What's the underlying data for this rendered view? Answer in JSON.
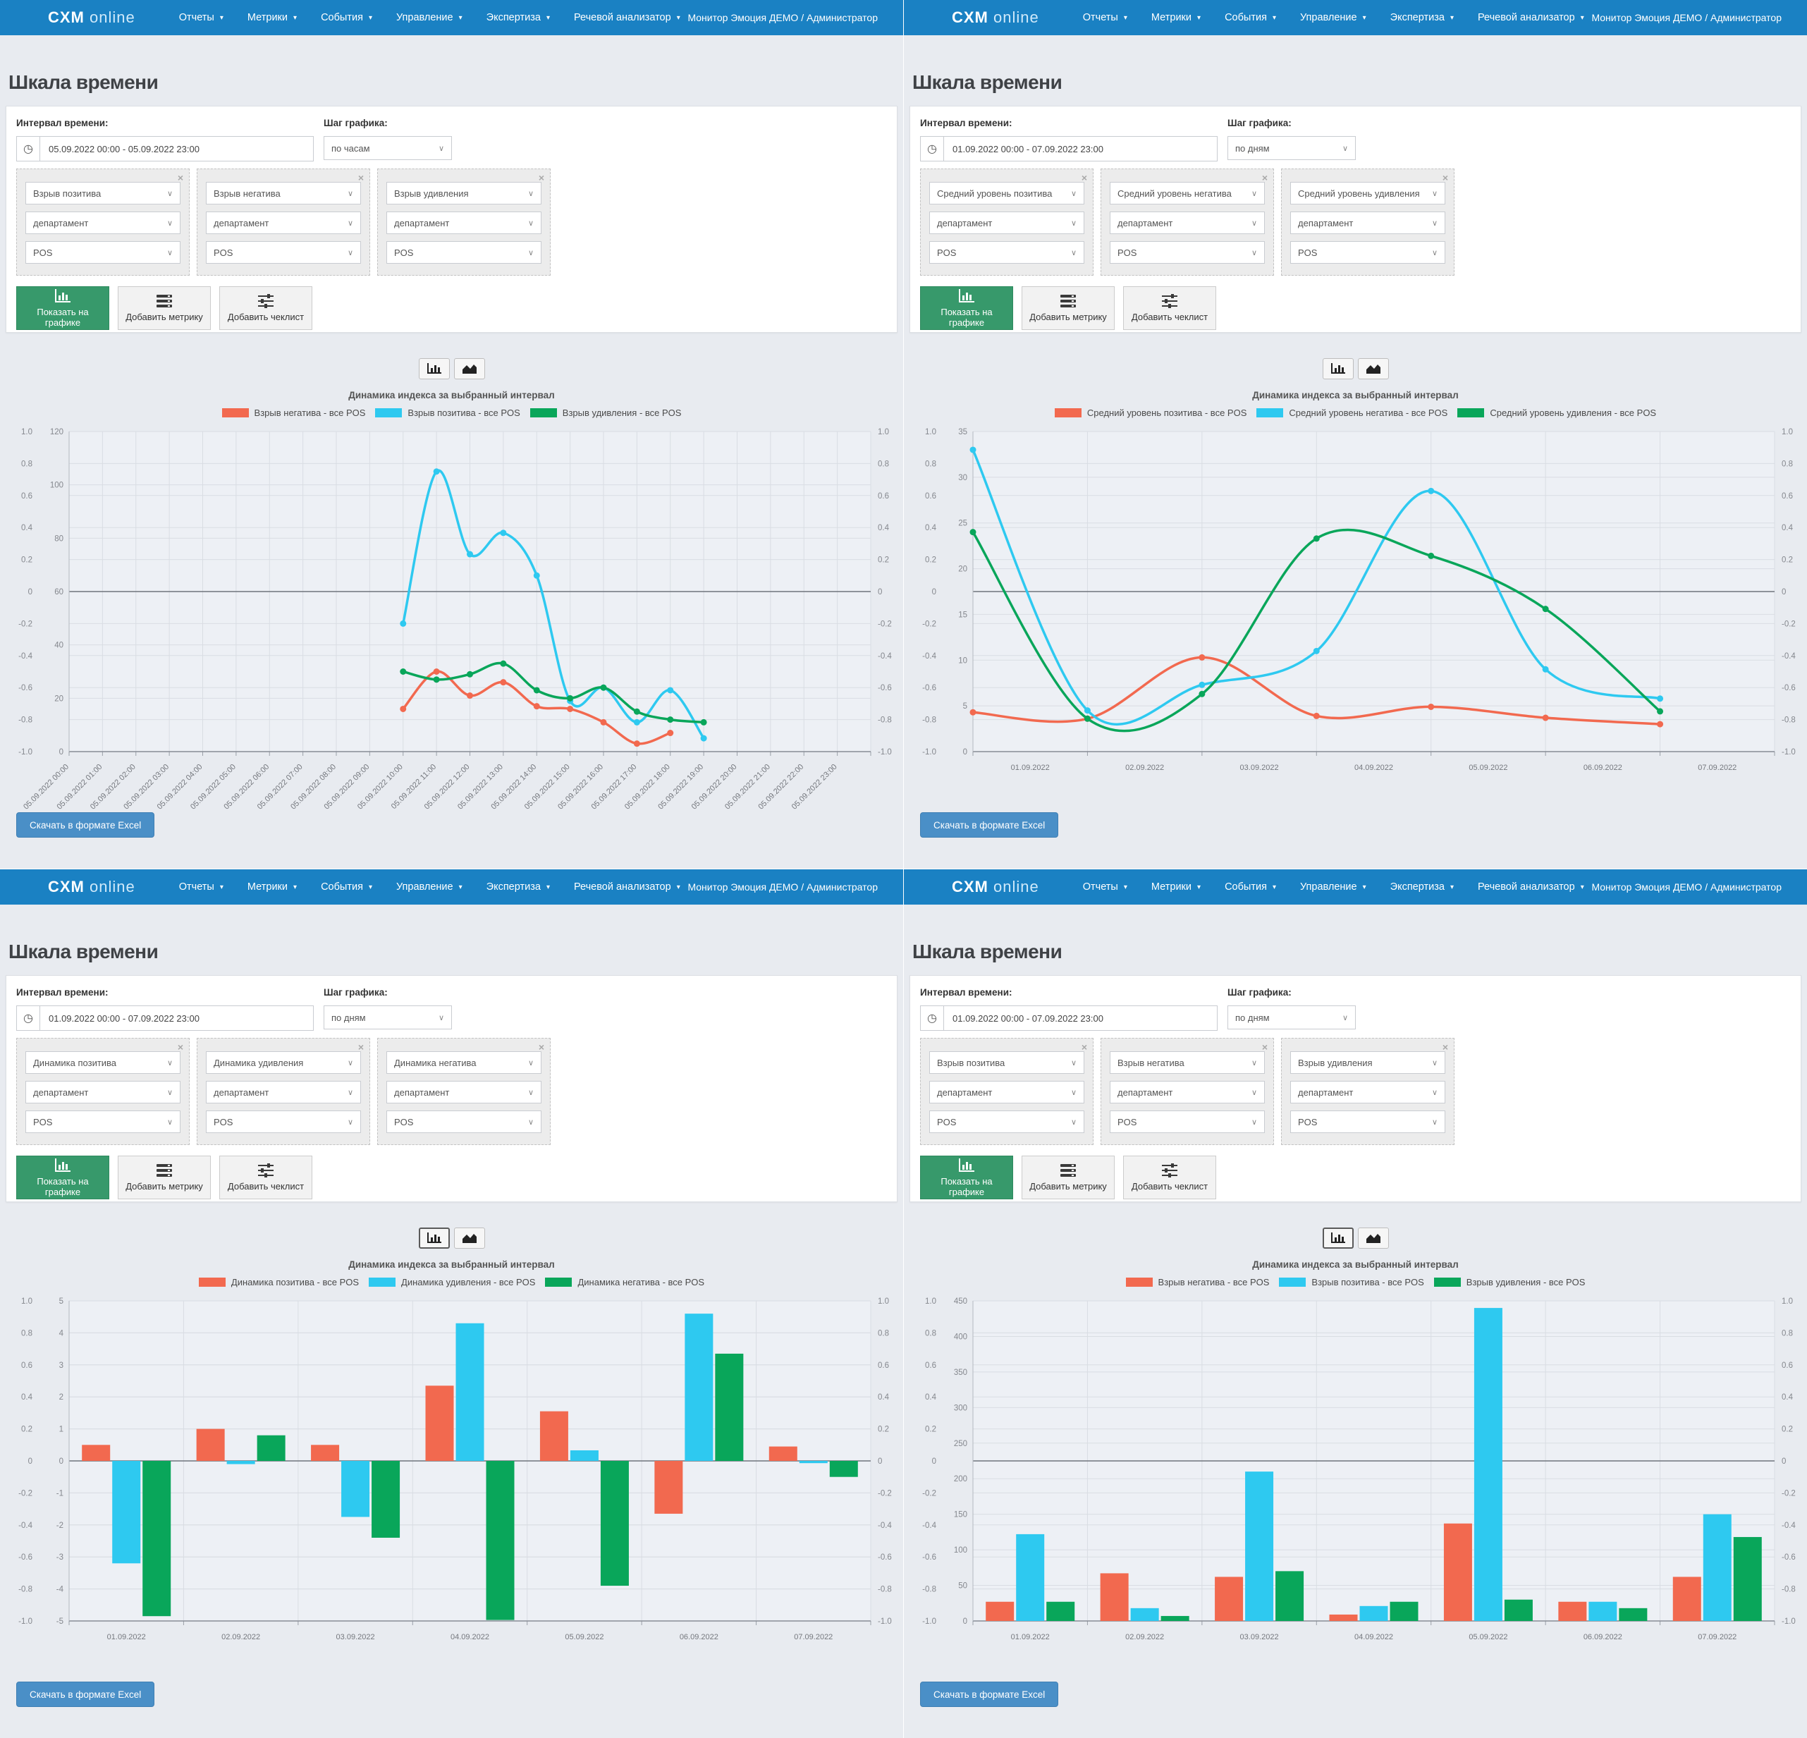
{
  "navbar": {
    "logo_main": "CXM",
    "logo_sub": "online",
    "items": [
      {
        "label": "Отчеты"
      },
      {
        "label": "Метрики"
      },
      {
        "label": "События"
      },
      {
        "label": "Управление"
      },
      {
        "label": "Экспертиза"
      },
      {
        "label": "Речевой анализатор"
      }
    ],
    "user": "Монитор Эмоция ДЕМО / Администратор"
  },
  "labels": {
    "page_title": "Шкала времени",
    "interval_label": "Интервал времени:",
    "step_label": "Шаг графика:",
    "show_button": "Показать на графике",
    "add_metric_button": "Добавить метрику",
    "add_checklist_button": "Добавить чеклист",
    "excel_button": "Скачать в формате Excel",
    "chart_title": "Динамика индекса за выбранный интервал",
    "department": "департамент",
    "pos": "POS",
    "clock_icon": "◷",
    "chevron_icon": "∨",
    "close_icon": "×",
    "caret_icon": "▾"
  },
  "colors": {
    "navbar": "#1a81c3",
    "page_bg": "#e8ebf0",
    "plot_bg": "#edf0f5",
    "grid": "#d9dde3",
    "series_red": "#f2694f",
    "series_cyan": "#2ec9f0",
    "series_green": "#09a65a",
    "green_button": "#37996b",
    "excel_button": "#4a8fc7"
  },
  "quadrants": [
    {
      "interval": "05.09.2022 00:00 - 05.09.2022 23:00",
      "step": "по часам",
      "metrics": [
        "Взрыв позитива",
        "Взрыв негатива",
        "Взрыв удивления"
      ],
      "active_toggle": "",
      "chart_data": {
        "type": "line",
        "tick_style": "hourly",
        "x_labels": [
          "05.09.2022 00:00",
          "05.09.2022 01:00",
          "05.09.2022 02:00",
          "05.09.2022 03:00",
          "05.09.2022 04:00",
          "05.09.2022 05:00",
          "05.09.2022 06:00",
          "05.09.2022 07:00",
          "05.09.2022 08:00",
          "05.09.2022 09:00",
          "05.09.2022 10:00",
          "05.09.2022 11:00",
          "05.09.2022 12:00",
          "05.09.2022 13:00",
          "05.09.2022 14:00",
          "05.09.2022 15:00",
          "05.09.2022 16:00",
          "05.09.2022 17:00",
          "05.09.2022 18:00",
          "05.09.2022 19:00",
          "05.09.2022 20:00",
          "05.09.2022 21:00",
          "05.09.2022 22:00",
          "05.09.2022 23:00"
        ],
        "title": "Динамика индекса за выбранный интервал",
        "left_axis": {
          "min": 0,
          "max": 120,
          "step": 20
        },
        "outer_axis": {
          "min": -1,
          "max": 1,
          "step": 0.2
        },
        "series": [
          {
            "name": "Взрыв негатива - все POS",
            "color": "series_red",
            "values": [
              null,
              null,
              null,
              null,
              null,
              null,
              null,
              null,
              null,
              null,
              16,
              30,
              21,
              26,
              17,
              16,
              11,
              3,
              7,
              null,
              null,
              null,
              null,
              null
            ]
          },
          {
            "name": "Взрыв позитива - все POS",
            "color": "series_cyan",
            "values": [
              null,
              null,
              null,
              null,
              null,
              null,
              null,
              null,
              null,
              null,
              48,
              105,
              74,
              82,
              66,
              19,
              24,
              11,
              23,
              5,
              null,
              null,
              null,
              null
            ]
          },
          {
            "name": "Взрыв удивления - все POS",
            "color": "series_green",
            "values": [
              null,
              null,
              null,
              null,
              null,
              null,
              null,
              null,
              null,
              null,
              30,
              27,
              29,
              33,
              23,
              20,
              24,
              15,
              12,
              11,
              null,
              null,
              null,
              null
            ]
          }
        ]
      }
    },
    {
      "interval": "01.09.2022 00:00 - 07.09.2022 23:00",
      "step": "по дням",
      "metrics": [
        "Средний уровень позитива",
        "Средний уровень негатива",
        "Средний уровень удивления"
      ],
      "active_toggle": "",
      "chart_data": {
        "type": "line",
        "tick_style": "daily",
        "x_labels": [
          "01.09.2022",
          "02.09.2022",
          "03.09.2022",
          "04.09.2022",
          "05.09.2022",
          "06.09.2022",
          "07.09.2022"
        ],
        "title": "Динамика индекса за выбранный интервал",
        "left_axis": {
          "min": 0,
          "max": 35,
          "step": 5
        },
        "outer_axis": {
          "min": -1,
          "max": 1,
          "step": 0.2
        },
        "series": [
          {
            "name": "Средний уровень позитива - все POS",
            "color": "series_red",
            "values": [
              4.3,
              3.6,
              10.3,
              3.9,
              4.9,
              3.7,
              3.0
            ]
          },
          {
            "name": "Средний уровень негатива - все POS",
            "color": "series_cyan",
            "values": [
              33,
              4.5,
              7.3,
              11,
              28.5,
              9,
              5.8
            ]
          },
          {
            "name": "Средний уровень удивления - все POS",
            "color": "series_green",
            "values": [
              24,
              3.6,
              6.3,
              23.3,
              21.4,
              15.6,
              4.4
            ]
          }
        ]
      }
    },
    {
      "interval": "01.09.2022 00:00 - 07.09.2022 23:00",
      "step": "по дням",
      "metrics": [
        "Динамика позитива",
        "Динамика удивления",
        "Динамика негатива"
      ],
      "active_toggle": "bar",
      "chart_data": {
        "type": "bar",
        "tick_style": "daily",
        "x_labels": [
          "01.09.2022",
          "02.09.2022",
          "03.09.2022",
          "04.09.2022",
          "05.09.2022",
          "06.09.2022",
          "07.09.2022"
        ],
        "title": "Динамика индекса за выбранный интервал",
        "left_axis": {
          "min": -5,
          "max": 5,
          "step": 1
        },
        "outer_axis": {
          "min": -1,
          "max": 1,
          "step": 0.2
        },
        "series": [
          {
            "name": "Динамика позитива - все POS",
            "color": "series_red",
            "values": [
              0.5,
              1.0,
              0.5,
              2.35,
              1.55,
              -1.65,
              0.45
            ]
          },
          {
            "name": "Динамика удивления - все POS",
            "color": "series_cyan",
            "values": [
              -3.2,
              -0.1,
              -1.75,
              4.3,
              0.33,
              4.6,
              -0.07
            ]
          },
          {
            "name": "Динамика негатива - все POS",
            "color": "series_green",
            "values": [
              -4.85,
              0.8,
              -2.4,
              -4.97,
              -3.9,
              3.35,
              -0.5
            ]
          }
        ]
      }
    },
    {
      "interval": "01.09.2022 00:00 - 07.09.2022 23:00",
      "step": "по дням",
      "metrics": [
        "Взрыв позитива",
        "Взрыв негатива",
        "Взрыв удивления"
      ],
      "active_toggle": "bar",
      "chart_data": {
        "type": "bar",
        "tick_style": "daily",
        "x_labels": [
          "01.09.2022",
          "02.09.2022",
          "03.09.2022",
          "04.09.2022",
          "05.09.2022",
          "06.09.2022",
          "07.09.2022"
        ],
        "title": "Динамика индекса за выбранный интервал",
        "left_axis": {
          "min": 0,
          "max": 450,
          "step": 50
        },
        "outer_axis": {
          "min": -1,
          "max": 1,
          "step": 0.2
        },
        "series": [
          {
            "name": "Взрыв негатива - все POS",
            "color": "series_red",
            "values": [
              27,
              67,
              62,
              9,
              137,
              27,
              62
            ]
          },
          {
            "name": "Взрыв позитива - все POS",
            "color": "series_cyan",
            "values": [
              122,
              18,
              210,
              21,
              440,
              27,
              150
            ]
          },
          {
            "name": "Взрыв удивления - все POS",
            "color": "series_green",
            "values": [
              27,
              7,
              70,
              27,
              30,
              18,
              118
            ]
          }
        ]
      }
    }
  ]
}
